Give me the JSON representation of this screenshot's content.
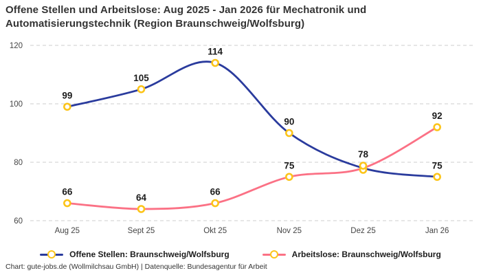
{
  "title": {
    "lines": [
      "Offene Stellen und Arbeitslose: Aug 2025 - Jan 2026 für Mechatronik und",
      "Automatisierungstechnik (Region Braunschweig/Wolfsburg)"
    ]
  },
  "footer": {
    "text": "Chart: gute-jobs.de (Wollmilchsau GmbH) | Datenquelle: Bundesagentur für Arbeit"
  },
  "colors": {
    "grid": "#cccccc",
    "marker_ring": "#fcc419",
    "axis_text": "#444444",
    "value_label_text": "#1c1c1c",
    "series_open_positions": "#2a3b9d",
    "series_unemployed": "#fb7185"
  },
  "chart_data": {
    "type": "line",
    "title": "Offene Stellen und Arbeitslose: Aug 2025 - Jan 2026 für Mechatronik und Automatisierungstechnik (Region Braunschweig/Wolfsburg)",
    "categories": [
      "Aug 25",
      "Sept 25",
      "Okt 25",
      "Nov 25",
      "Dez 25",
      "Jan 26"
    ],
    "series": [
      {
        "name": "Offene Stellen: Braunschweig/Wolfsburg",
        "color": "#2a3b9d",
        "values": [
          99,
          105,
          114,
          90,
          78,
          75
        ]
      },
      {
        "name": "Arbeitslose: Braunschweig/Wolfsburg",
        "color": "#fb7185",
        "values": [
          66,
          64,
          66,
          75,
          78,
          92
        ]
      }
    ],
    "y_ticks": [
      60,
      80,
      100,
      120
    ],
    "ylim": [
      60,
      120
    ],
    "grid": "horizontal-dashed",
    "legend_position": "bottom",
    "marker": "yellow-ring-circle",
    "data_labels": "shown-above-points"
  }
}
